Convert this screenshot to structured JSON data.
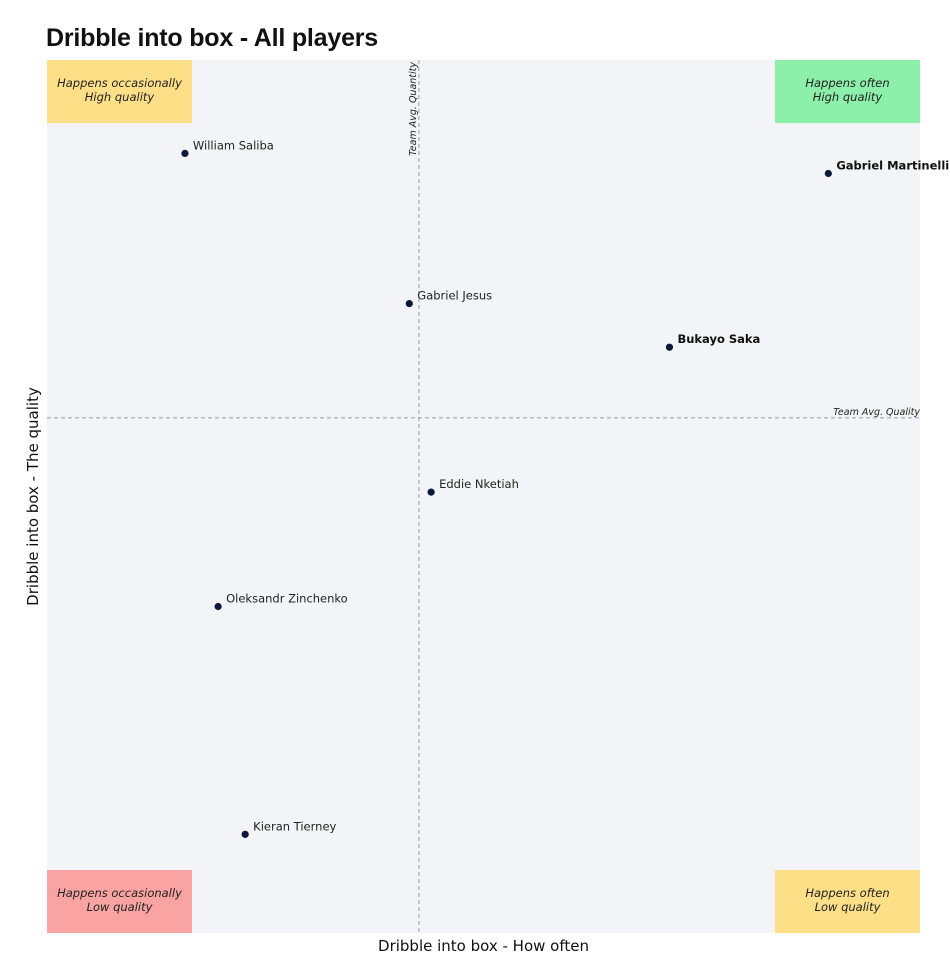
{
  "title": "Dribble into box - All players",
  "chart_data": {
    "type": "scatter",
    "title": "Dribble into box - All players",
    "xlabel": "Dribble into box - How often",
    "ylabel": "Dribble into box - The quality",
    "xlim": [
      0,
      100
    ],
    "ylim": [
      0,
      100
    ],
    "grid": false,
    "legend": "none",
    "axis_ticks_shown": false,
    "background_color": "#f3f4f8",
    "point_color": "#0b1a3a",
    "reference_lines": {
      "x": {
        "value": 42.6,
        "label": "Team Avg. Quantity"
      },
      "y": {
        "value": 59.0,
        "label": "Team Avg. Quality"
      }
    },
    "quadrants": [
      {
        "position": "top-left",
        "line1": "Happens occasionally",
        "line2": "High quality",
        "color": "#fddf88"
      },
      {
        "position": "top-right",
        "line1": "Happens often",
        "line2": "High quality",
        "color": "#8cefaa"
      },
      {
        "position": "bottom-left",
        "line1": "Happens occasionally",
        "line2": "Low quality",
        "color": "#f9a3a3"
      },
      {
        "position": "bottom-right",
        "line1": "Happens often",
        "line2": "Low quality",
        "color": "#fddf88"
      }
    ],
    "points": [
      {
        "name": "William Saliba",
        "x": 15.8,
        "y": 89.3,
        "bold": false
      },
      {
        "name": "Gabriel Martinelli",
        "x": 89.5,
        "y": 87.0,
        "bold": true
      },
      {
        "name": "Gabriel Jesus",
        "x": 41.5,
        "y": 72.1,
        "bold": false
      },
      {
        "name": "Bukayo Saka",
        "x": 71.3,
        "y": 67.1,
        "bold": true
      },
      {
        "name": "Eddie Nketiah",
        "x": 44.0,
        "y": 50.5,
        "bold": false
      },
      {
        "name": "Oleksandr Zinchenko",
        "x": 19.6,
        "y": 37.4,
        "bold": false
      },
      {
        "name": "Kieran Tierney",
        "x": 22.7,
        "y": 11.3,
        "bold": false
      }
    ]
  }
}
